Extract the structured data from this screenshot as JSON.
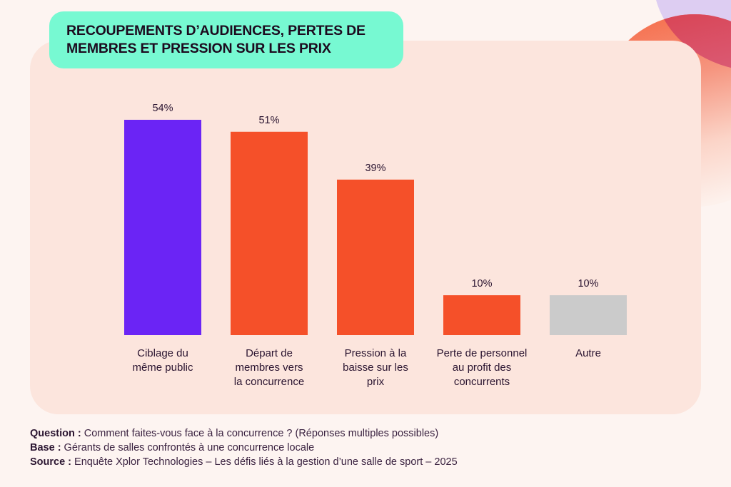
{
  "title": "RECOUPEMENTS D’AUDIENCES, PERTES DE MEMBRES ET PRESSION SUR LES PRIX",
  "colors": {
    "highlight": "#6b24f5",
    "main": "#f55029",
    "other": "#cbcbcb",
    "title_bg": "#77f9d2",
    "panel_bg": "#fce5dd"
  },
  "chart_data": {
    "type": "bar",
    "title": "RECOUPEMENTS D’AUDIENCES, PERTES DE MEMBRES ET PRESSION SUR LES PRIX",
    "xlabel": "",
    "ylabel": "",
    "ylim": [
      0,
      54
    ],
    "grid": false,
    "legend": "none",
    "unit": "%",
    "categories": [
      [
        "Ciblage du",
        "même public"
      ],
      [
        "Départ de",
        "membres vers",
        "la concurrence"
      ],
      [
        "Pression à la",
        "baisse sur les",
        "prix"
      ],
      [
        "Perte de personnel",
        "au profit des",
        "concurrents"
      ],
      [
        "Autre"
      ]
    ],
    "values": [
      54,
      51,
      39,
      10,
      10
    ],
    "data_labels": [
      "54%",
      "51%",
      "39%",
      "10%",
      "10%"
    ],
    "bar_colors": [
      "#6b24f5",
      "#f55029",
      "#f55029",
      "#f55029",
      "#cbcbcb"
    ]
  },
  "footer": {
    "question_label": "Question :",
    "question_text": " Comment faites-vous face à la concurrence ? (Réponses multiples possibles)",
    "base_label": "Base :",
    "base_text": " Gérants de salles confrontés à une concurrence locale",
    "source_label": "Source :",
    "source_text": " Enquête Xplor Technologies – Les défis liés à la gestion d’une salle de sport – 2025"
  }
}
